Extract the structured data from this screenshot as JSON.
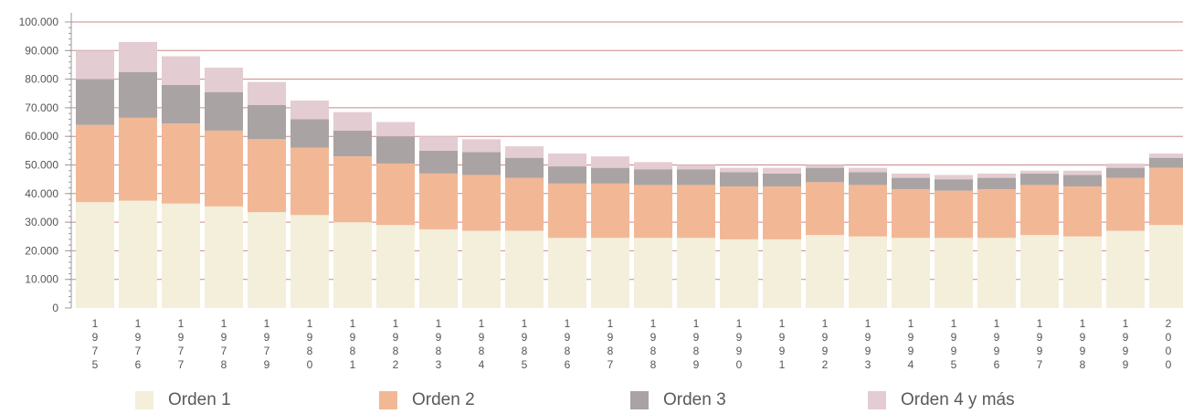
{
  "chart_data": {
    "type": "bar",
    "stacked": true,
    "categories": [
      "1975",
      "1976",
      "1977",
      "1978",
      "1979",
      "1980",
      "1981",
      "1982",
      "1983",
      "1984",
      "1985",
      "1986",
      "1987",
      "1988",
      "1989",
      "1990",
      "1991",
      "1992",
      "1993",
      "1994",
      "1995",
      "1996",
      "1997",
      "1998",
      "1999",
      "2000"
    ],
    "series": [
      {
        "name": "Orden 1",
        "color": "#f3efdb",
        "values": [
          37000,
          37500,
          36500,
          35500,
          33500,
          32500,
          30000,
          29000,
          27500,
          27000,
          27000,
          24500,
          24500,
          24500,
          24500,
          24000,
          24000,
          25500,
          25000,
          24500,
          24500,
          24500,
          25500,
          25000,
          27000,
          29000
        ]
      },
      {
        "name": "Orden 2",
        "color": "#f2b896",
        "values": [
          27000,
          29000,
          28000,
          26500,
          25500,
          23500,
          23000,
          21500,
          19500,
          19500,
          18500,
          19000,
          19000,
          18500,
          18500,
          18500,
          18500,
          18500,
          18000,
          17000,
          16500,
          17000,
          17500,
          17500,
          18500,
          20000
        ]
      },
      {
        "name": "Orden 3",
        "color": "#aaa3a3",
        "values": [
          16000,
          16000,
          13500,
          13500,
          12000,
          10000,
          9000,
          9500,
          8000,
          8000,
          7000,
          6000,
          5500,
          5500,
          5500,
          5000,
          4500,
          5000,
          4500,
          4000,
          4000,
          4000,
          4000,
          4000,
          3500,
          3500
        ]
      },
      {
        "name": "Orden 4 y más",
        "color": "#e3ccd2",
        "values": [
          10000,
          10500,
          10000,
          8500,
          8000,
          6500,
          6500,
          5000,
          5000,
          4500,
          4000,
          4500,
          4000,
          2500,
          1500,
          1500,
          2000,
          1000,
          1500,
          1500,
          1500,
          1500,
          1000,
          1500,
          1500,
          1500
        ]
      }
    ],
    "ylim": [
      0,
      100000
    ],
    "yticks": [
      "0",
      "10.000",
      "20.000",
      "30.000",
      "40.000",
      "50.000",
      "60.000",
      "70.000",
      "80.000",
      "90.000",
      "100.000"
    ],
    "xlabel": "",
    "ylabel": "",
    "title": "",
    "grid": true,
    "legend_position": "bottom"
  }
}
